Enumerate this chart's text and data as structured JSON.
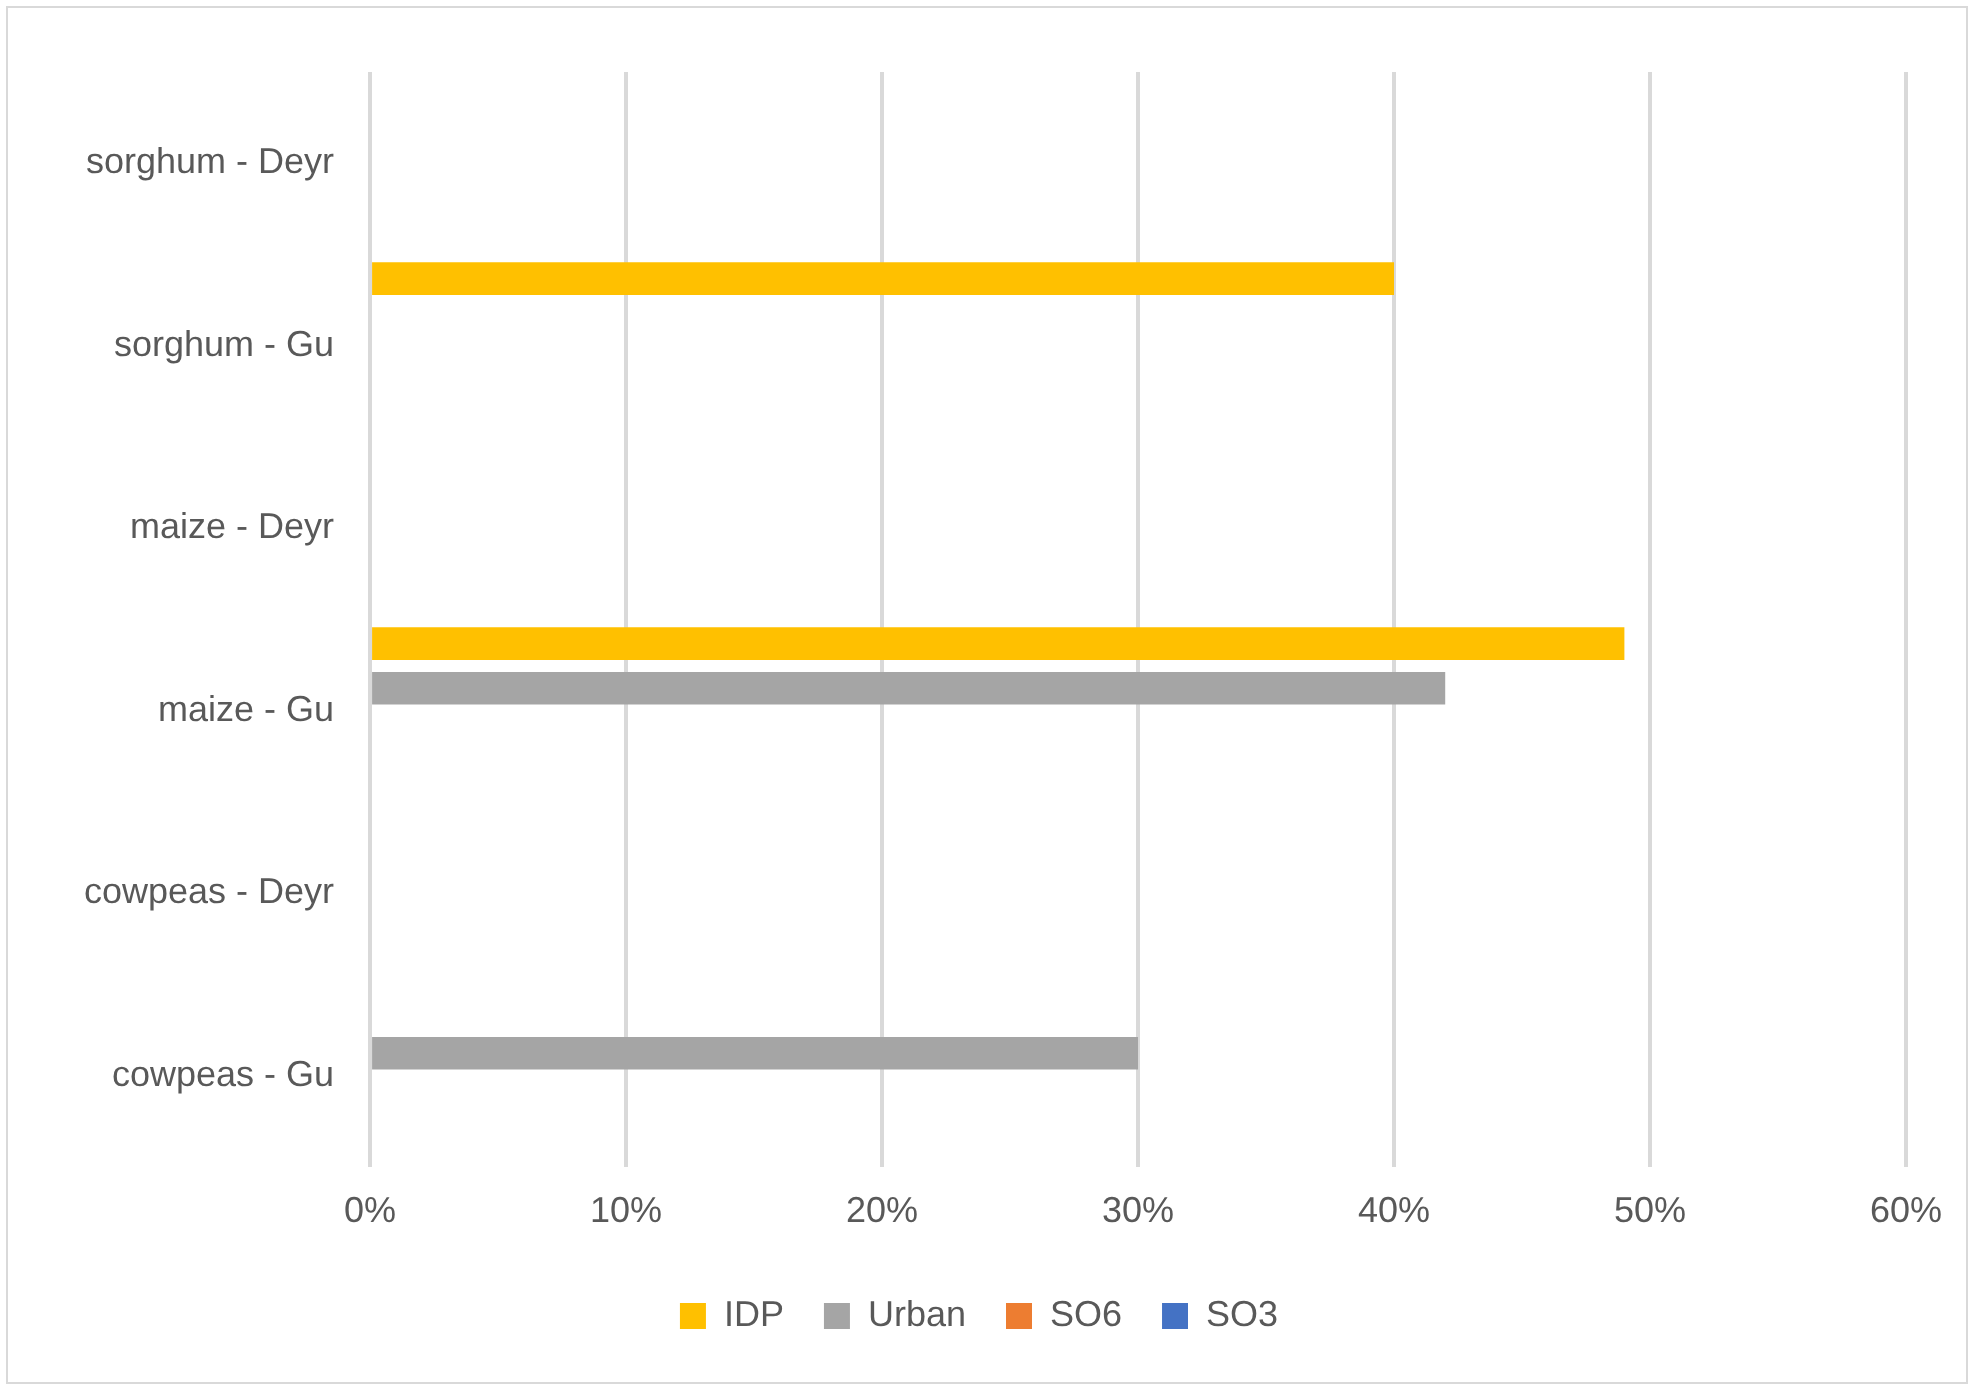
{
  "chart_data": {
    "type": "bar",
    "orientation": "horizontal",
    "categories": [
      "sorghum - Deyr",
      "sorghum - Gu",
      "maize - Deyr",
      "maize - Gu",
      "cowpeas - Deyr",
      "cowpeas - Gu"
    ],
    "series": [
      {
        "name": "IDP",
        "color": "#ffc000",
        "values": [
          null,
          40,
          null,
          49,
          null,
          null
        ]
      },
      {
        "name": "Urban",
        "color": "#a5a5a5",
        "values": [
          null,
          null,
          null,
          42,
          null,
          30
        ]
      },
      {
        "name": "SO6",
        "color": "#ed7d31",
        "values": [
          null,
          null,
          null,
          null,
          null,
          null
        ]
      },
      {
        "name": "SO3",
        "color": "#4472c4",
        "values": [
          null,
          null,
          null,
          null,
          null,
          null
        ]
      }
    ],
    "xlim": [
      0,
      60
    ],
    "xticks": [
      {
        "value": 0,
        "label": "0%"
      },
      {
        "value": 10,
        "label": "10%"
      },
      {
        "value": 20,
        "label": "20%"
      },
      {
        "value": 30,
        "label": "30%"
      },
      {
        "value": 40,
        "label": "40%"
      },
      {
        "value": 50,
        "label": "50%"
      },
      {
        "value": 60,
        "label": "60%"
      }
    ],
    "grid": "x",
    "legend": "bottom"
  }
}
